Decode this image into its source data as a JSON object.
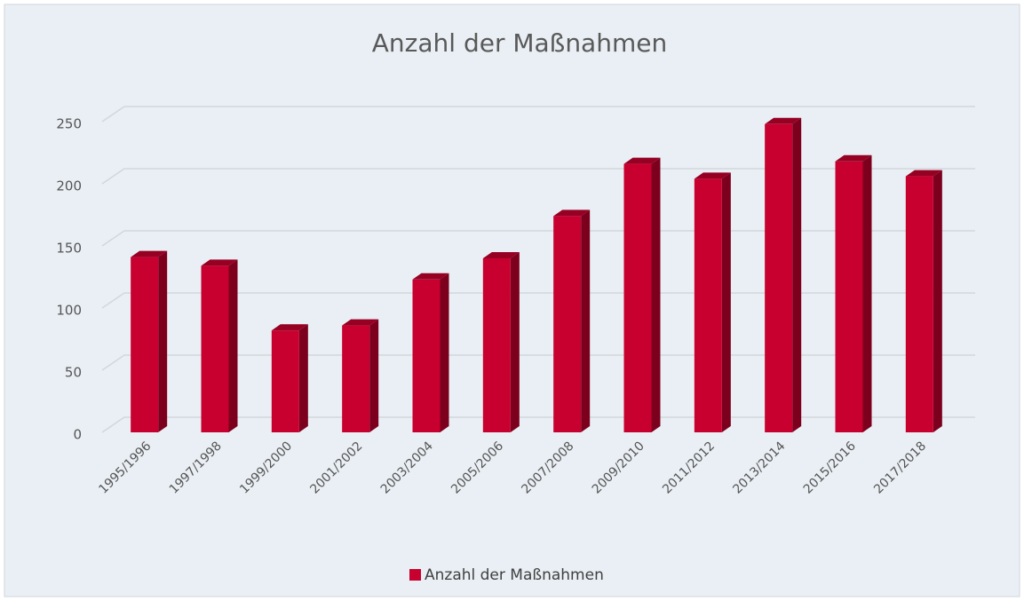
{
  "chart_data": {
    "type": "bar",
    "title": "Anzahl der Maßnahmen",
    "categories": [
      "1995/1996",
      "1997/1998",
      "1999/2000",
      "2001/2002",
      "2003/2004",
      "2005/2006",
      "2007/2008",
      "2009/2010",
      "2011/2012",
      "2013/2014",
      "2015/2016",
      "2017/2018"
    ],
    "series": [
      {
        "name": "Anzahl der Maßnahmen",
        "color": "#c8002f",
        "values": [
          141,
          134,
          82,
          86,
          123,
          140,
          174,
          216,
          204,
          248,
          218,
          206
        ]
      }
    ],
    "ylim": [
      0,
      250
    ],
    "yticks": [
      0,
      50,
      100,
      150,
      200,
      250
    ],
    "grid": true,
    "legend": "bottom"
  }
}
